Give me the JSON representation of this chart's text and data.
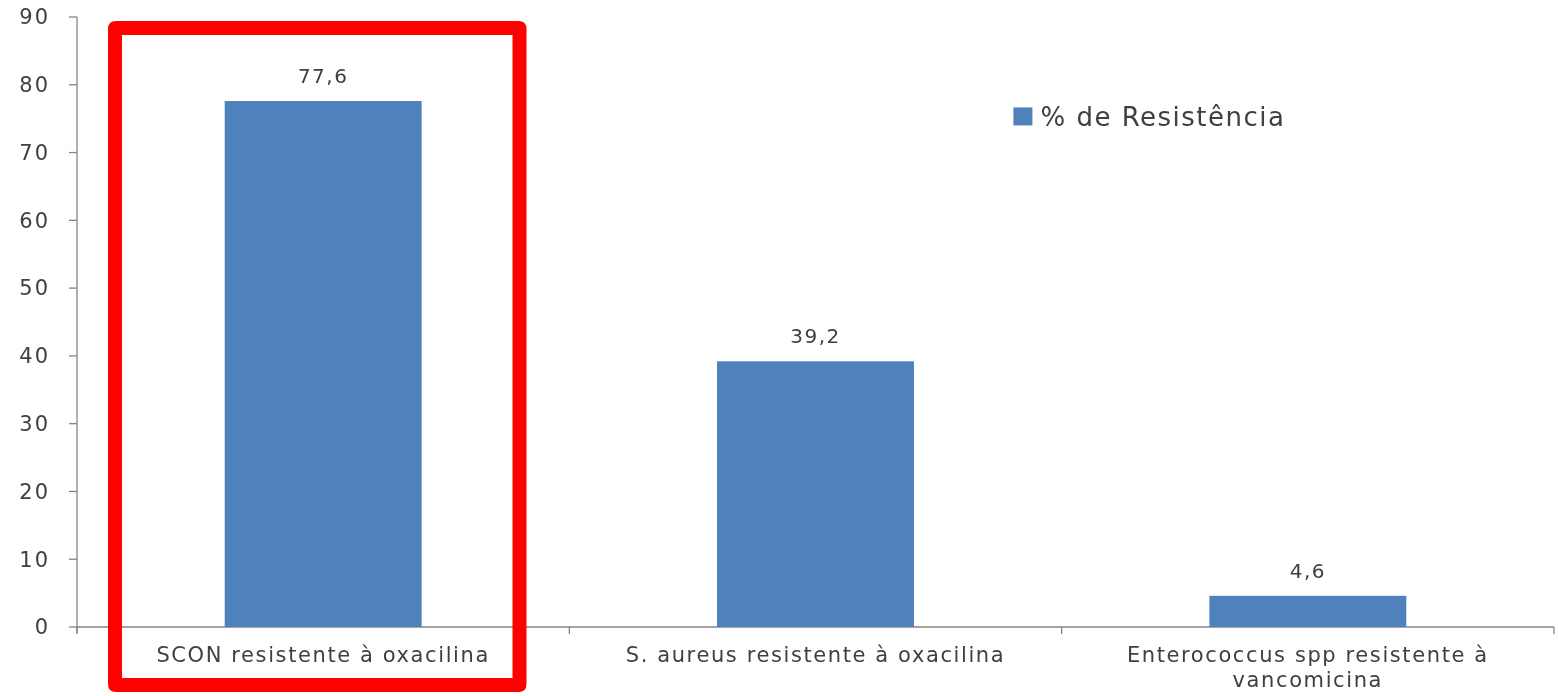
{
  "chart_data": {
    "type": "bar",
    "categories": [
      "SCON resistente à oxacilina",
      "S. aureus resistente à oxacilina",
      "Enterococcus spp resistente à vancomicina"
    ],
    "series": [
      {
        "name": "% de Resistência",
        "color": "#4f81bd",
        "values": [
          77.6,
          39.2,
          4.6
        ],
        "value_labels": [
          "77,6",
          "39,2",
          "4,6"
        ]
      }
    ],
    "ylim": [
      0,
      90
    ],
    "yticks": [
      0,
      10,
      20,
      30,
      40,
      50,
      60,
      70,
      80,
      90
    ],
    "legend": "top right"
  }
}
